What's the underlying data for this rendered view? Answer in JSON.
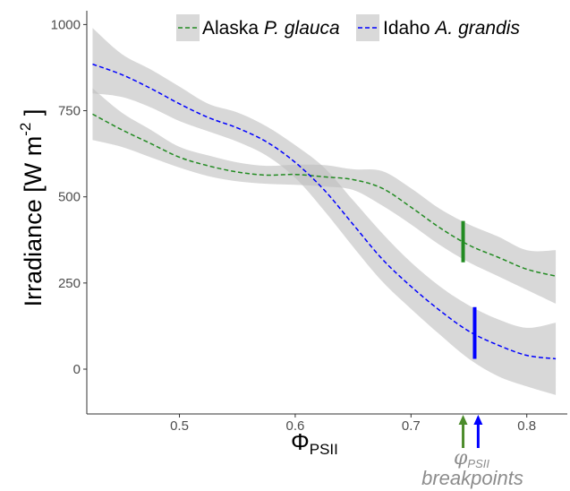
{
  "chart_data": {
    "type": "line",
    "xlim": [
      0.42,
      0.835
    ],
    "ylim": [
      -130,
      1040
    ],
    "xticks": [
      0.5,
      0.6,
      0.7,
      0.8
    ],
    "xtick_labels": [
      "0.5",
      "0.6",
      "0.7",
      "0.8"
    ],
    "yticks": [
      0,
      250,
      500,
      750,
      1000
    ],
    "ytick_labels": [
      "0",
      "250",
      "500",
      "750",
      "1000"
    ],
    "ylabel": {
      "main": "Irradiance [W m",
      "exp": "-2",
      "close": " ]"
    },
    "xlabel": {
      "symbol": "Φ",
      "sub": "PSII"
    },
    "legend": {
      "position": "top-right",
      "entries": [
        {
          "prefix": "Alaska ",
          "italic": "P. glauca",
          "color": "#228B22"
        },
        {
          "prefix": "Idaho ",
          "italic": "A. grandis",
          "color": "#0000FF"
        }
      ]
    },
    "series": [
      {
        "name": "Alaska P. glauca",
        "color": "#228B22",
        "x": [
          0.425,
          0.45,
          0.475,
          0.5,
          0.525,
          0.55,
          0.575,
          0.6,
          0.625,
          0.65,
          0.675,
          0.7,
          0.725,
          0.75,
          0.775,
          0.8,
          0.825
        ],
        "y": [
          740,
          695,
          655,
          615,
          590,
          572,
          563,
          565,
          558,
          550,
          525,
          470,
          410,
          360,
          325,
          290,
          270
        ],
        "lower": [
          665,
          645,
          615,
          585,
          560,
          545,
          538,
          535,
          530,
          520,
          475,
          420,
          360,
          310,
          270,
          230,
          190
        ],
        "upper": [
          815,
          745,
          695,
          645,
          620,
          600,
          590,
          593,
          592,
          580,
          575,
          525,
          465,
          420,
          385,
          345,
          345
        ]
      },
      {
        "name": "Idaho A. grandis",
        "color": "#0000FF",
        "x": [
          0.425,
          0.45,
          0.475,
          0.5,
          0.525,
          0.55,
          0.575,
          0.6,
          0.625,
          0.65,
          0.675,
          0.7,
          0.725,
          0.75,
          0.775,
          0.8,
          0.825
        ],
        "y": [
          885,
          855,
          815,
          770,
          730,
          700,
          660,
          600,
          520,
          420,
          320,
          240,
          170,
          110,
          70,
          40,
          30
        ],
        "lower": [
          800,
          790,
          760,
          720,
          690,
          660,
          620,
          555,
          460,
          355,
          255,
          175,
          100,
          30,
          -20,
          -50,
          -75
        ],
        "upper": [
          990,
          915,
          870,
          820,
          770,
          745,
          705,
          650,
          585,
          490,
          395,
          310,
          240,
          185,
          145,
          120,
          135
        ]
      }
    ],
    "breakpoint_bars": [
      {
        "x": 0.745,
        "y_low": 310,
        "y_high": 430,
        "color": "#228B22"
      },
      {
        "x": 0.755,
        "y_low": 30,
        "y_high": 180,
        "color": "#0000FF"
      }
    ],
    "breakpoint_arrows": [
      {
        "x": 0.745,
        "color": "#4C8C2B"
      },
      {
        "x": 0.758,
        "color": "#0000FF"
      }
    ],
    "annotation": {
      "symbol": "φ",
      "sub": "PSII",
      "text": "breakpoints"
    }
  }
}
